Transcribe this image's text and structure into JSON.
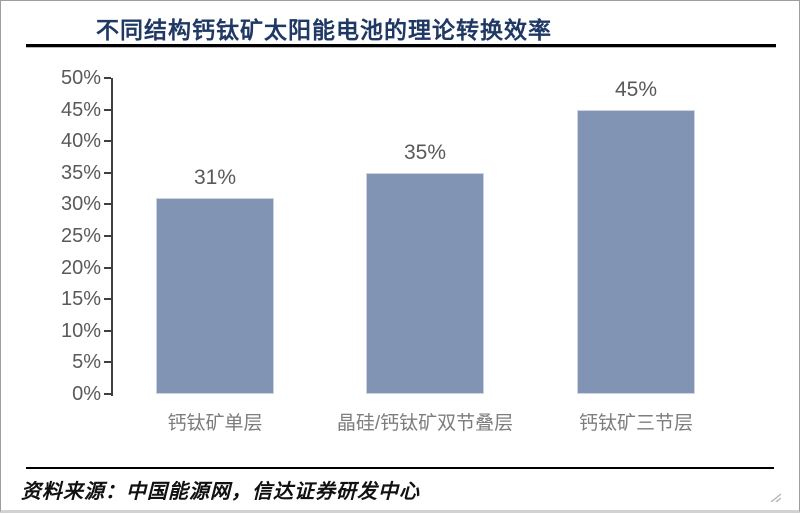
{
  "header": {
    "title": "不同结构钙钛矿太阳能电池的理论转换效率"
  },
  "chart_data": {
    "type": "bar",
    "title": "不同结构钙钛矿太阳能电池的理论转换效率",
    "categories": [
      "钙钛矿单层",
      "晶硅/钙钛矿双节叠层",
      "钙钛矿三节层"
    ],
    "values": [
      31,
      35,
      45
    ],
    "data_labels": [
      "31%",
      "35%",
      "45%"
    ],
    "xlabel": "",
    "ylabel": "",
    "ylim": [
      0,
      50
    ],
    "ytick_values": [
      0,
      5,
      10,
      15,
      20,
      25,
      30,
      35,
      40,
      45,
      50
    ],
    "ytick_labels": [
      "0%",
      "5%",
      "10%",
      "15%",
      "20%",
      "25%",
      "30%",
      "35%",
      "40%",
      "45%",
      "50%"
    ],
    "grid": false,
    "legend": "none",
    "bar_color": "#8294b4"
  },
  "footer": {
    "source": "资料来源：中国能源网，信达证券研发中心"
  },
  "colors": {
    "title_text": "#1f3864",
    "bar_fill": "#8294b4",
    "bar_border": "#ccd4e2",
    "axis_line": "#3f3f3f",
    "ytick_text": "#595959",
    "xtick_text": "#7d7d7d",
    "value_label_text": "#595959",
    "rule": "#000000"
  }
}
